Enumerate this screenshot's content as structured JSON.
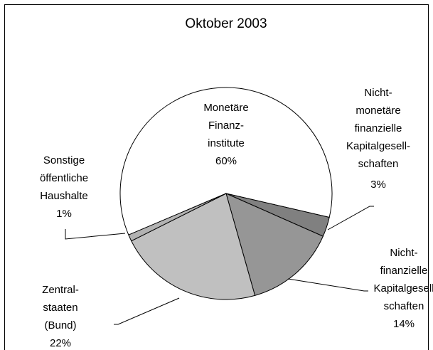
{
  "chart_data": {
    "type": "pie",
    "title": "Oktober 2003",
    "categories": [
      [
        "Monetäre",
        "Finanz-",
        "institute"
      ],
      [
        "Nicht-",
        "monetäre",
        "finanzielle",
        "Kapitalgesell-",
        "schaften"
      ],
      [
        "Nicht-",
        "finanzielle",
        "Kapitalgesell",
        "schaften"
      ],
      [
        "Zentral-",
        "staaten",
        "(Bund)"
      ],
      [
        "Sonstige",
        "öffentliche",
        "Haushalte"
      ]
    ],
    "values": [
      60,
      3,
      14,
      22,
      1
    ],
    "value_labels": [
      "60%",
      "3%",
      "14%",
      "22%",
      "1%"
    ],
    "colors": [
      "#ffffff",
      "#808080",
      "#969696",
      "#c0c0c0",
      "#b2b2b2"
    ]
  }
}
